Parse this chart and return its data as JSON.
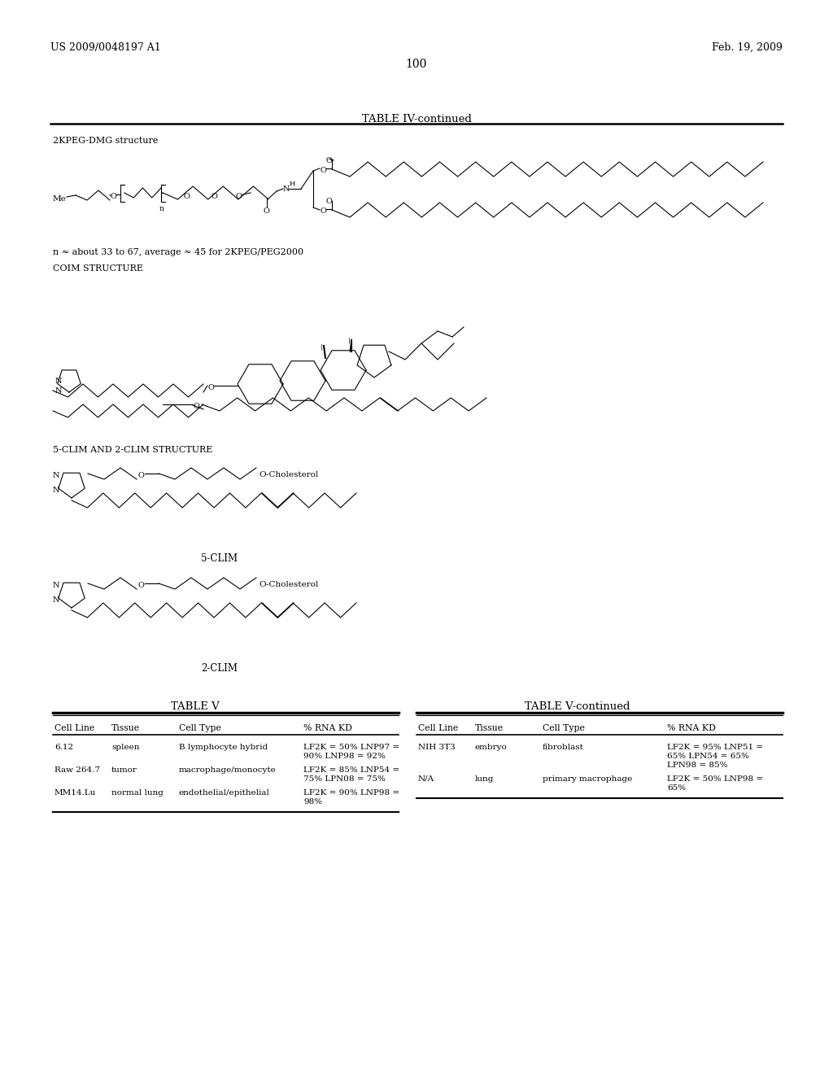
{
  "background_color": "#ffffff",
  "page_number": "100",
  "header_left": "US 2009/0048197 A1",
  "header_right": "Feb. 19, 2009",
  "table4_title": "TABLE IV-continued",
  "label_2kpeg": "2KPEG-DMG structure",
  "label_n": "n ≈ about 33 to 67, average ≈ 45 for 2KPEG/PEG2000",
  "label_coim": "COIM STRUCTURE",
  "label_5clim_2clim": "5-CLIM AND 2-CLIM STRUCTURE",
  "label_5clim": "5-CLIM",
  "label_2clim": "2-CLIM",
  "table5_title": "TABLE V",
  "table5cont_title": "TABLE V-continued",
  "col_headers": [
    "Cell Line",
    "Tissue",
    "Cell Type",
    "% RNA KD"
  ],
  "table5_rows": [
    [
      "6.12",
      "spleen",
      "B lymphocyte hybrid",
      "LF2K = 50% LNP97 =\n90% LNP98 = 92%"
    ],
    [
      "Raw 264.7",
      "tumor",
      "macrophage/monocyte",
      "LF2K = 85% LNP54 =\n75% LPN08 = 75%"
    ],
    [
      "MM14.Lu",
      "normal lung",
      "endothelial/epithelial",
      "LF2K = 90% LNP98 =\n98%"
    ]
  ],
  "table5cont_rows": [
    [
      "NIH 3T3",
      "embryo",
      "fibroblast",
      "LF2K = 95% LNP51 =\n65% LPN54 = 65%\nLPN98 = 85%"
    ],
    [
      "N/A",
      "lung",
      "primary macrophage",
      "LF2K = 50% LNP98 =\n65%"
    ]
  ]
}
